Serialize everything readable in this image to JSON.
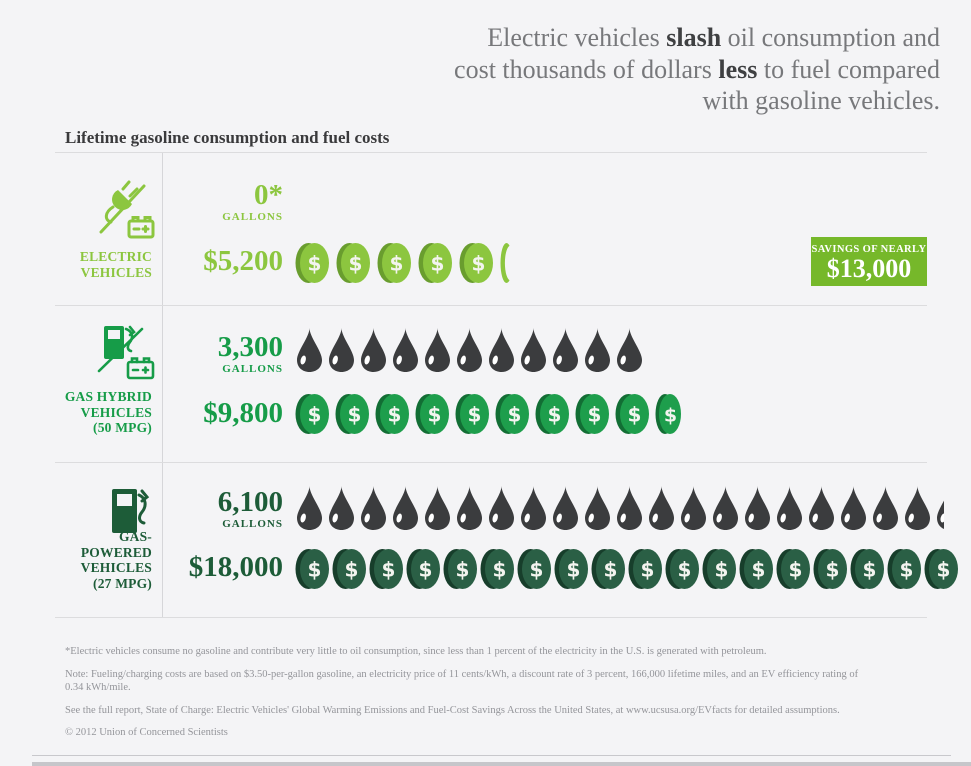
{
  "headline": {
    "l1a": "Electric vehicles ",
    "l1b": "slash",
    "l1c": " oil consumption and",
    "l2a": "cost thousands of dollars ",
    "l2b": "less",
    "l2c": " to fuel compared",
    "l3": "with gasoline vehicles."
  },
  "section_title": "Lifetime gasoline consumption and fuel costs",
  "rows": [
    {
      "label": "ELECTRIC\nVEHICLES",
      "gallons": "0*",
      "gallons_unit": "GALLONS",
      "cost": "$5,200",
      "coins": {
        "type": "coin",
        "count": 5,
        "partial": "sliver",
        "face": "#8cc63f",
        "side": "#699d2e"
      }
    },
    {
      "label": "GAS HYBRID\nVEHICLES\n(50 MPG)",
      "gallons": "3,300",
      "gallons_unit": "GALLONS",
      "cost": "$9,800",
      "drops": {
        "type": "drop",
        "count": 11,
        "partial": 0,
        "color": "#3b3c3e"
      },
      "coins": {
        "type": "coin",
        "count": 9,
        "partial": "narrow",
        "face": "#1e9e4c",
        "side": "#126e34"
      }
    },
    {
      "label": "GAS-POWERED\nVEHICLES\n(27 MPG)",
      "gallons": "6,100",
      "gallons_unit": "GALLONS",
      "cost": "$18,000",
      "drops": {
        "type": "drop",
        "count": 20,
        "partial": 0.3,
        "color": "#3b3c3e"
      },
      "coins": {
        "type": "coin",
        "count": 18,
        "partial": "none",
        "face": "#2a5f45",
        "side": "#173e2b"
      }
    }
  ],
  "badge": {
    "label": "SAVINGS OF NEARLY",
    "value": "$13,000",
    "bg": "#76b82a"
  },
  "footnotes": [
    "*Electric vehicles consume no gasoline and contribute very little to oil consumption, since less than 1 percent of the electricity in the U.S. is generated with petroleum.",
    "Note: Fueling/charging costs are based on $3.50-per-gallon gasoline, an electricity price of 11 cents/kWh, a discount rate of 3 percent, 166,000 lifetime miles, and an EV efficiency rating of 0.34 kWh/mile.",
    "See the full report, State of Charge: Electric Vehicles' Global Warming Emissions and Fuel-Cost Savings Across the United States, at www.ucsusa.org/EVfacts for detailed assumptions.",
    "© 2012 Union of Concerned Scientists"
  ],
  "colors": {
    "background": "#f4f4f6",
    "electric_green": "#8cc63f",
    "hybrid_green": "#169c48",
    "gas_dark_green": "#1d5c38",
    "drop_charcoal": "#3b3c3e",
    "badge_green": "#76b82a",
    "headline_gray": "#77787b",
    "headline_bold": "#3f4042"
  },
  "chart_data": {
    "type": "bar",
    "variant": "pictograph",
    "title": "Lifetime gasoline consumption and fuel costs",
    "categories": [
      "Electric vehicles",
      "Gas hybrid vehicles (50 MPG)",
      "Gas-powered vehicles (27 MPG)"
    ],
    "series": [
      {
        "name": "Lifetime gasoline consumption (gallons)",
        "values": [
          0,
          3300,
          6100
        ],
        "icon": "oil-drop",
        "gallons_per_icon": 300
      },
      {
        "name": "Lifetime fuel cost (USD)",
        "values": [
          5200,
          9800,
          18000
        ],
        "icon": "dollar-coin",
        "dollars_per_icon": 1000
      }
    ],
    "annotations": [
      "Savings of nearly $13,000 for electric vehicles"
    ],
    "legend_position": "none",
    "grid": false
  }
}
